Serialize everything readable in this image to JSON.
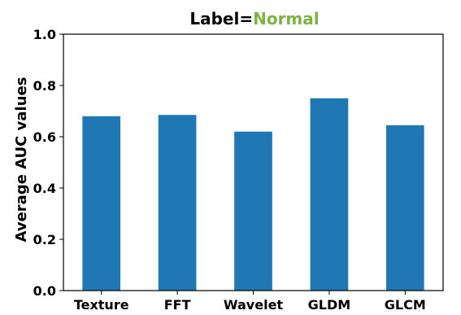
{
  "chart_data": {
    "type": "bar",
    "title": {
      "prefix": "Label=",
      "highlight": "Normal"
    },
    "categories": [
      "Texture",
      "FFT",
      "Wavelet",
      "GLDM",
      "GLCM"
    ],
    "values": [
      0.68,
      0.685,
      0.62,
      0.75,
      0.645
    ],
    "xlabel": "",
    "ylabel": "Average AUC values",
    "ylim": [
      0.0,
      1.0
    ],
    "yticks": [
      "0.0",
      "0.2",
      "0.4",
      "0.6",
      "0.8",
      "1.0"
    ],
    "grid": false,
    "legend": "none",
    "colors": {
      "bar": "#1f77b4",
      "title_highlight": "#7cb342",
      "title_prefix": "#000000"
    }
  }
}
